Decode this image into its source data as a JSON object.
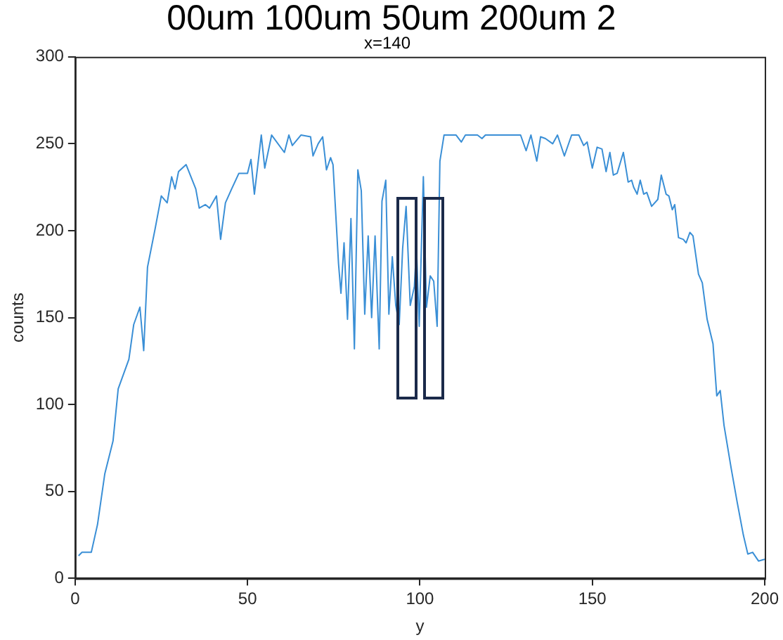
{
  "chart_data": {
    "type": "line",
    "title": "x=140",
    "xlabel": "y",
    "ylabel": "counts",
    "annotations": [
      "00um 100um 50um 200um 2"
    ],
    "xlim": [
      0,
      200
    ],
    "xticks": [
      0,
      50,
      100,
      150,
      200
    ],
    "ylim": [
      0,
      300
    ],
    "yticks": [
      0,
      50,
      100,
      150,
      200,
      250,
      300
    ],
    "grid": false,
    "legend": false,
    "marker": "none",
    "line_style": "solid",
    "series": [
      {
        "color": "#3a8fd6",
        "x": [
          1,
          2,
          4.7,
          6.5,
          8.6,
          11,
          12.5,
          15.6,
          17,
          18.8,
          19.9,
          21,
          23.2,
          25,
          26.7,
          28,
          29,
          30,
          32.2,
          35,
          36,
          37.8,
          39,
          41,
          42.2,
          43.6,
          45.4,
          47.5,
          50,
          51,
          52,
          54,
          55,
          57,
          60.7,
          62,
          63,
          65.5,
          68.3,
          69,
          70.5,
          71.8,
          72.9,
          74.1,
          74.8,
          76.4,
          77.1,
          78,
          79,
          80,
          81,
          82,
          83,
          84,
          85,
          86,
          87,
          88.2,
          89,
          90.1,
          91,
          92,
          93,
          94,
          95,
          96,
          97.2,
          98.4,
          99,
          99.8,
          101,
          101.9,
          103,
          104,
          105,
          105.8,
          107,
          110.5,
          112,
          113.2,
          116.7,
          118,
          119,
          124,
          129.2,
          130.8,
          132.2,
          133.9,
          135,
          136.4,
          138.5,
          139.9,
          141.9,
          144,
          146.1,
          147.5,
          148.5,
          150,
          151.4,
          152.8,
          154,
          155.1,
          156.1,
          157.2,
          159,
          160.4,
          161.4,
          162,
          163,
          163.9,
          164.9,
          165.8,
          167.2,
          169,
          170,
          171.4,
          172.2,
          173.2,
          173.9,
          175,
          176.4,
          177.2,
          178.3,
          179.2,
          180.8,
          181.9,
          183.3,
          185,
          186.1,
          187.1,
          188.2,
          190.3,
          192,
          193.8,
          195.1,
          196.5,
          198.2,
          200
        ],
        "values": [
          13,
          15,
          15,
          31,
          60,
          79,
          109,
          126,
          146,
          156,
          131,
          179,
          201,
          220,
          216,
          231,
          224,
          234,
          238,
          224,
          213,
          215,
          213,
          220,
          195,
          216,
          224,
          233,
          233,
          241,
          221,
          255,
          236,
          255,
          245,
          255,
          249,
          255,
          254,
          243,
          250,
          254,
          235,
          242,
          238,
          181,
          164,
          193,
          149,
          207,
          132,
          235,
          223,
          152,
          197,
          150,
          197,
          132,
          217,
          229,
          152,
          185,
          157,
          146,
          190,
          214,
          157,
          168,
          190,
          145,
          231,
          156,
          174,
          171,
          145,
          240,
          255,
          255,
          251,
          255,
          255,
          253,
          255,
          255,
          255,
          246,
          255,
          240,
          254,
          253,
          250,
          255,
          243,
          255,
          255,
          249,
          251,
          236,
          248,
          247,
          234,
          245,
          232,
          233,
          245,
          228,
          229,
          225,
          221,
          229,
          221,
          222,
          214,
          218,
          232,
          221,
          220,
          212,
          215,
          196,
          195,
          193,
          199,
          197,
          175,
          170,
          149,
          135,
          105,
          108,
          88,
          63,
          44,
          25,
          14,
          15,
          10,
          11
        ]
      }
    ]
  }
}
